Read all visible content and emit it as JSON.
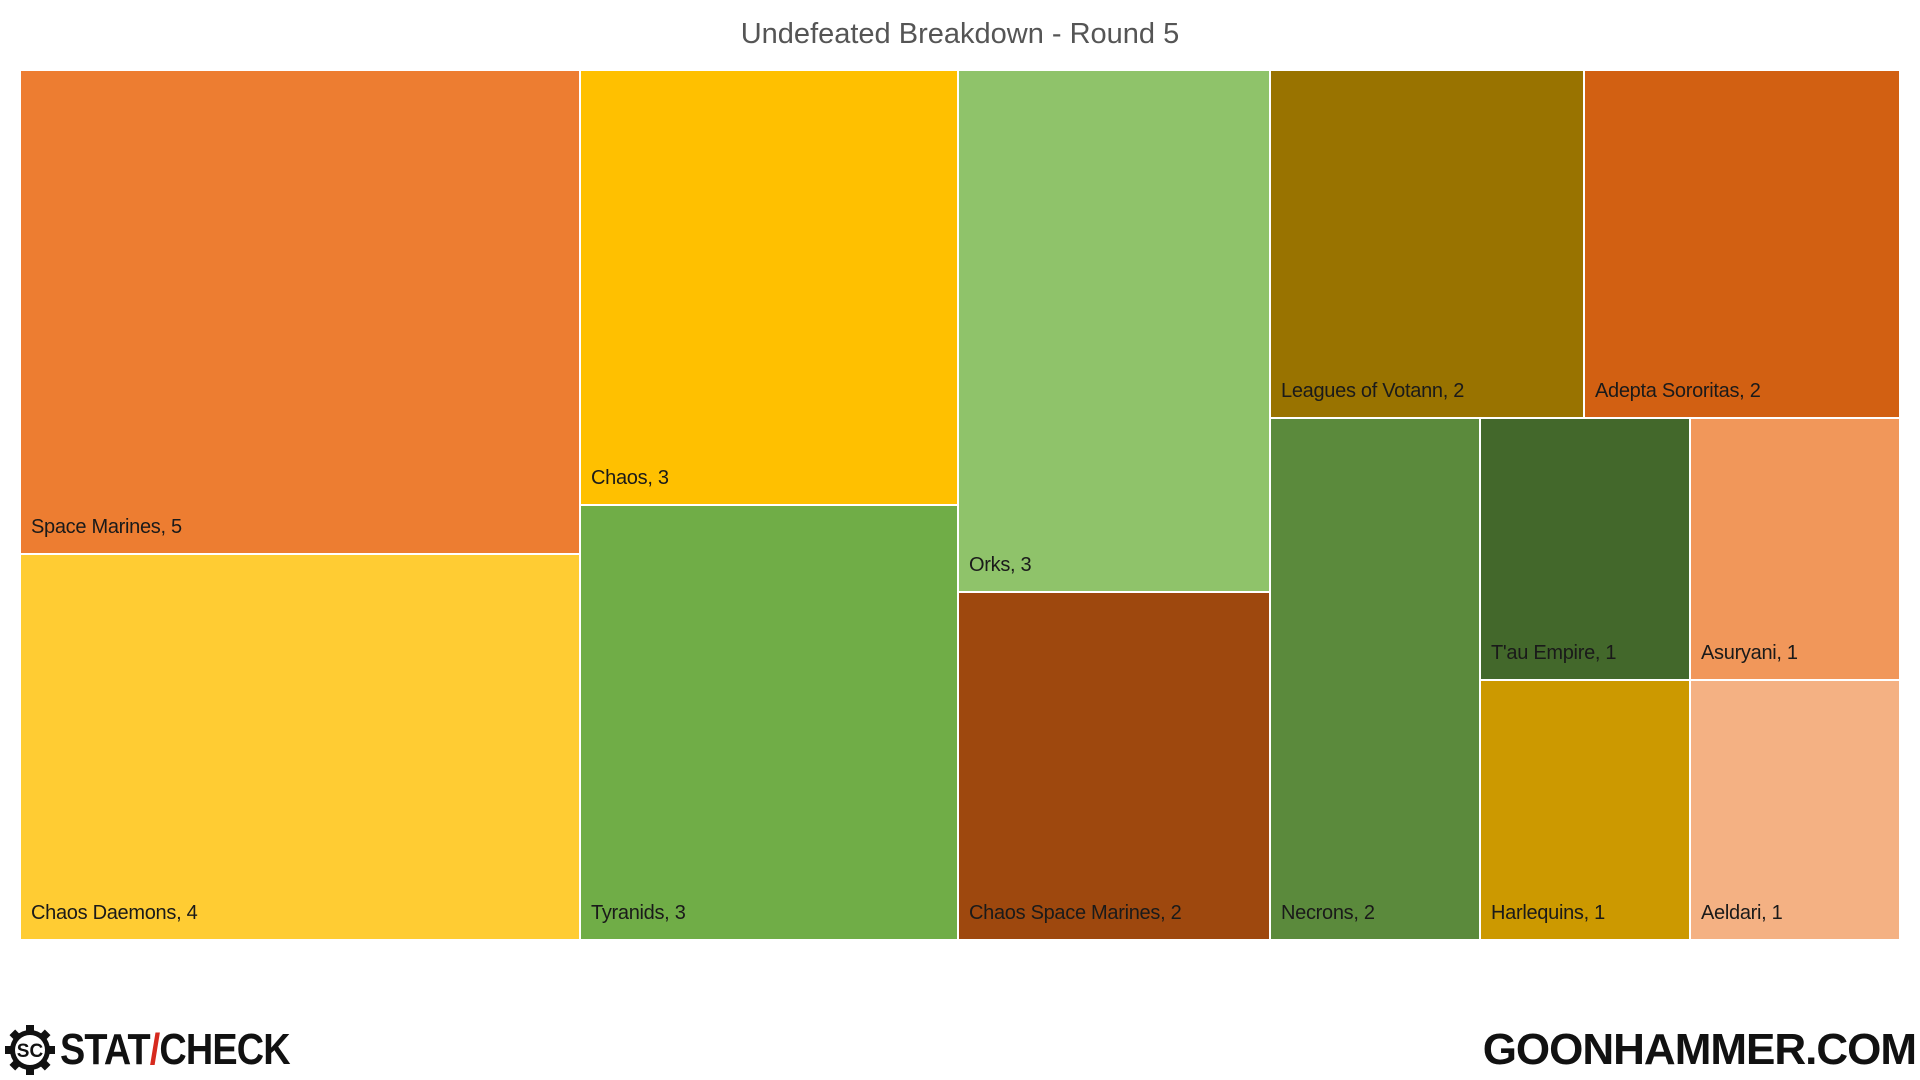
{
  "chart_data": {
    "type": "treemap",
    "title": "Undefeated Breakdown - Round 5",
    "items": [
      {
        "name": "Space Marines",
        "value": 5,
        "label": "Space Marines, 5",
        "color": "#ED7D31"
      },
      {
        "name": "Chaos Daemons",
        "value": 4,
        "label": "Chaos Daemons, 4",
        "color": "#FFCC33"
      },
      {
        "name": "Chaos",
        "value": 3,
        "label": "Chaos, 3",
        "color": "#FFC000"
      },
      {
        "name": "Tyranids",
        "value": 3,
        "label": "Tyranids, 3",
        "color": "#70AD47"
      },
      {
        "name": "Orks",
        "value": 3,
        "label": "Orks, 3",
        "color": "#8FC36A"
      },
      {
        "name": "Chaos Space Marines",
        "value": 2,
        "label": "Chaos Space Marines, 2",
        "color": "#9E480E"
      },
      {
        "name": "Leagues of Votann",
        "value": 2,
        "label": "Leagues of Votann, 2",
        "color": "#997300"
      },
      {
        "name": "Adepta Sororitas",
        "value": 2,
        "label": "Adepta Sororitas, 2",
        "color": "#D26012"
      },
      {
        "name": "Necrons",
        "value": 2,
        "label": "Necrons, 2",
        "color": "#5B8A3C"
      },
      {
        "name": "T'au Empire",
        "value": 1,
        "label": "T'au Empire, 1",
        "color": "#43682B"
      },
      {
        "name": "Asuryani",
        "value": 1,
        "label": "Asuryani, 1",
        "color": "#F1975A"
      },
      {
        "name": "Harlequins",
        "value": 1,
        "label": "Harlequins, 1",
        "color": "#CC9900"
      },
      {
        "name": "Aeldari",
        "value": 1,
        "label": "Aeldari, 1",
        "color": "#F4B183"
      }
    ]
  },
  "footer": {
    "logo_icon": "gear-icon",
    "left_brand": {
      "part1": "STAT",
      "slash": "/",
      "part2": "CHECK",
      "logo_letters": "SC"
    },
    "right_brand": "GOONHAMMER.COM"
  }
}
